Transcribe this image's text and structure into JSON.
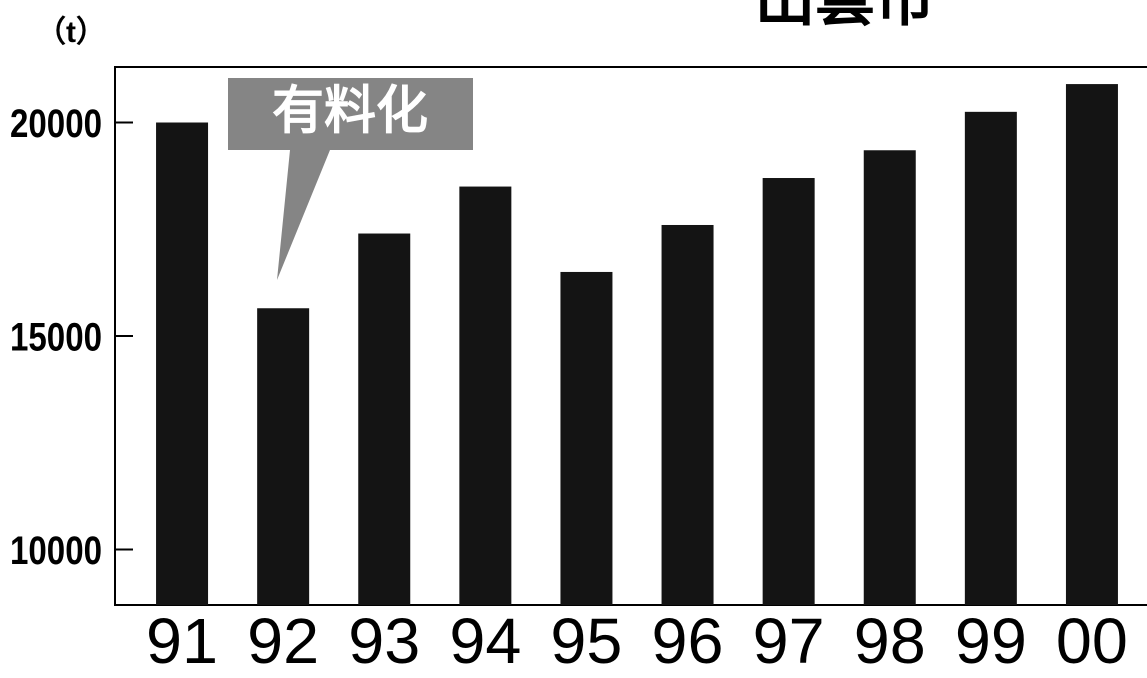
{
  "chart_data": {
    "type": "bar",
    "title": "出雲市",
    "y_label": "（t）",
    "annotation": "有料化",
    "categories": [
      "91",
      "92",
      "93",
      "94",
      "95",
      "96",
      "97",
      "98",
      "99",
      "00"
    ],
    "values": [
      20000,
      15650,
      17400,
      18500,
      16500,
      17600,
      18700,
      19350,
      20250,
      20900
    ],
    "color": "#141414",
    "ylim": [
      8700,
      21300
    ],
    "yticks": [
      10000,
      15000,
      20000
    ],
    "grid": false
  }
}
